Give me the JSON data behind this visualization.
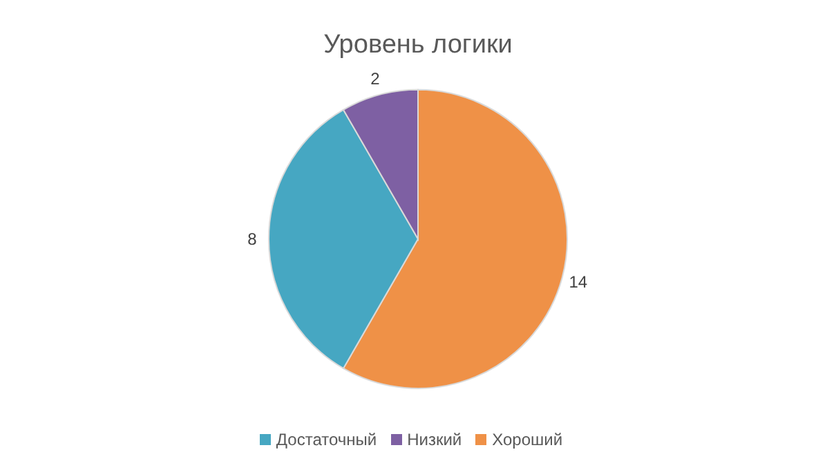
{
  "chart_data": {
    "type": "pie",
    "title": "Уровень логики",
    "categories": [
      "Хороший",
      "Достаточный",
      "Низкий"
    ],
    "values": [
      14,
      8,
      2
    ],
    "colors": [
      "#ef9147",
      "#46a7c2",
      "#7e60a3"
    ],
    "data_labels": true,
    "legend": "bottom"
  }
}
